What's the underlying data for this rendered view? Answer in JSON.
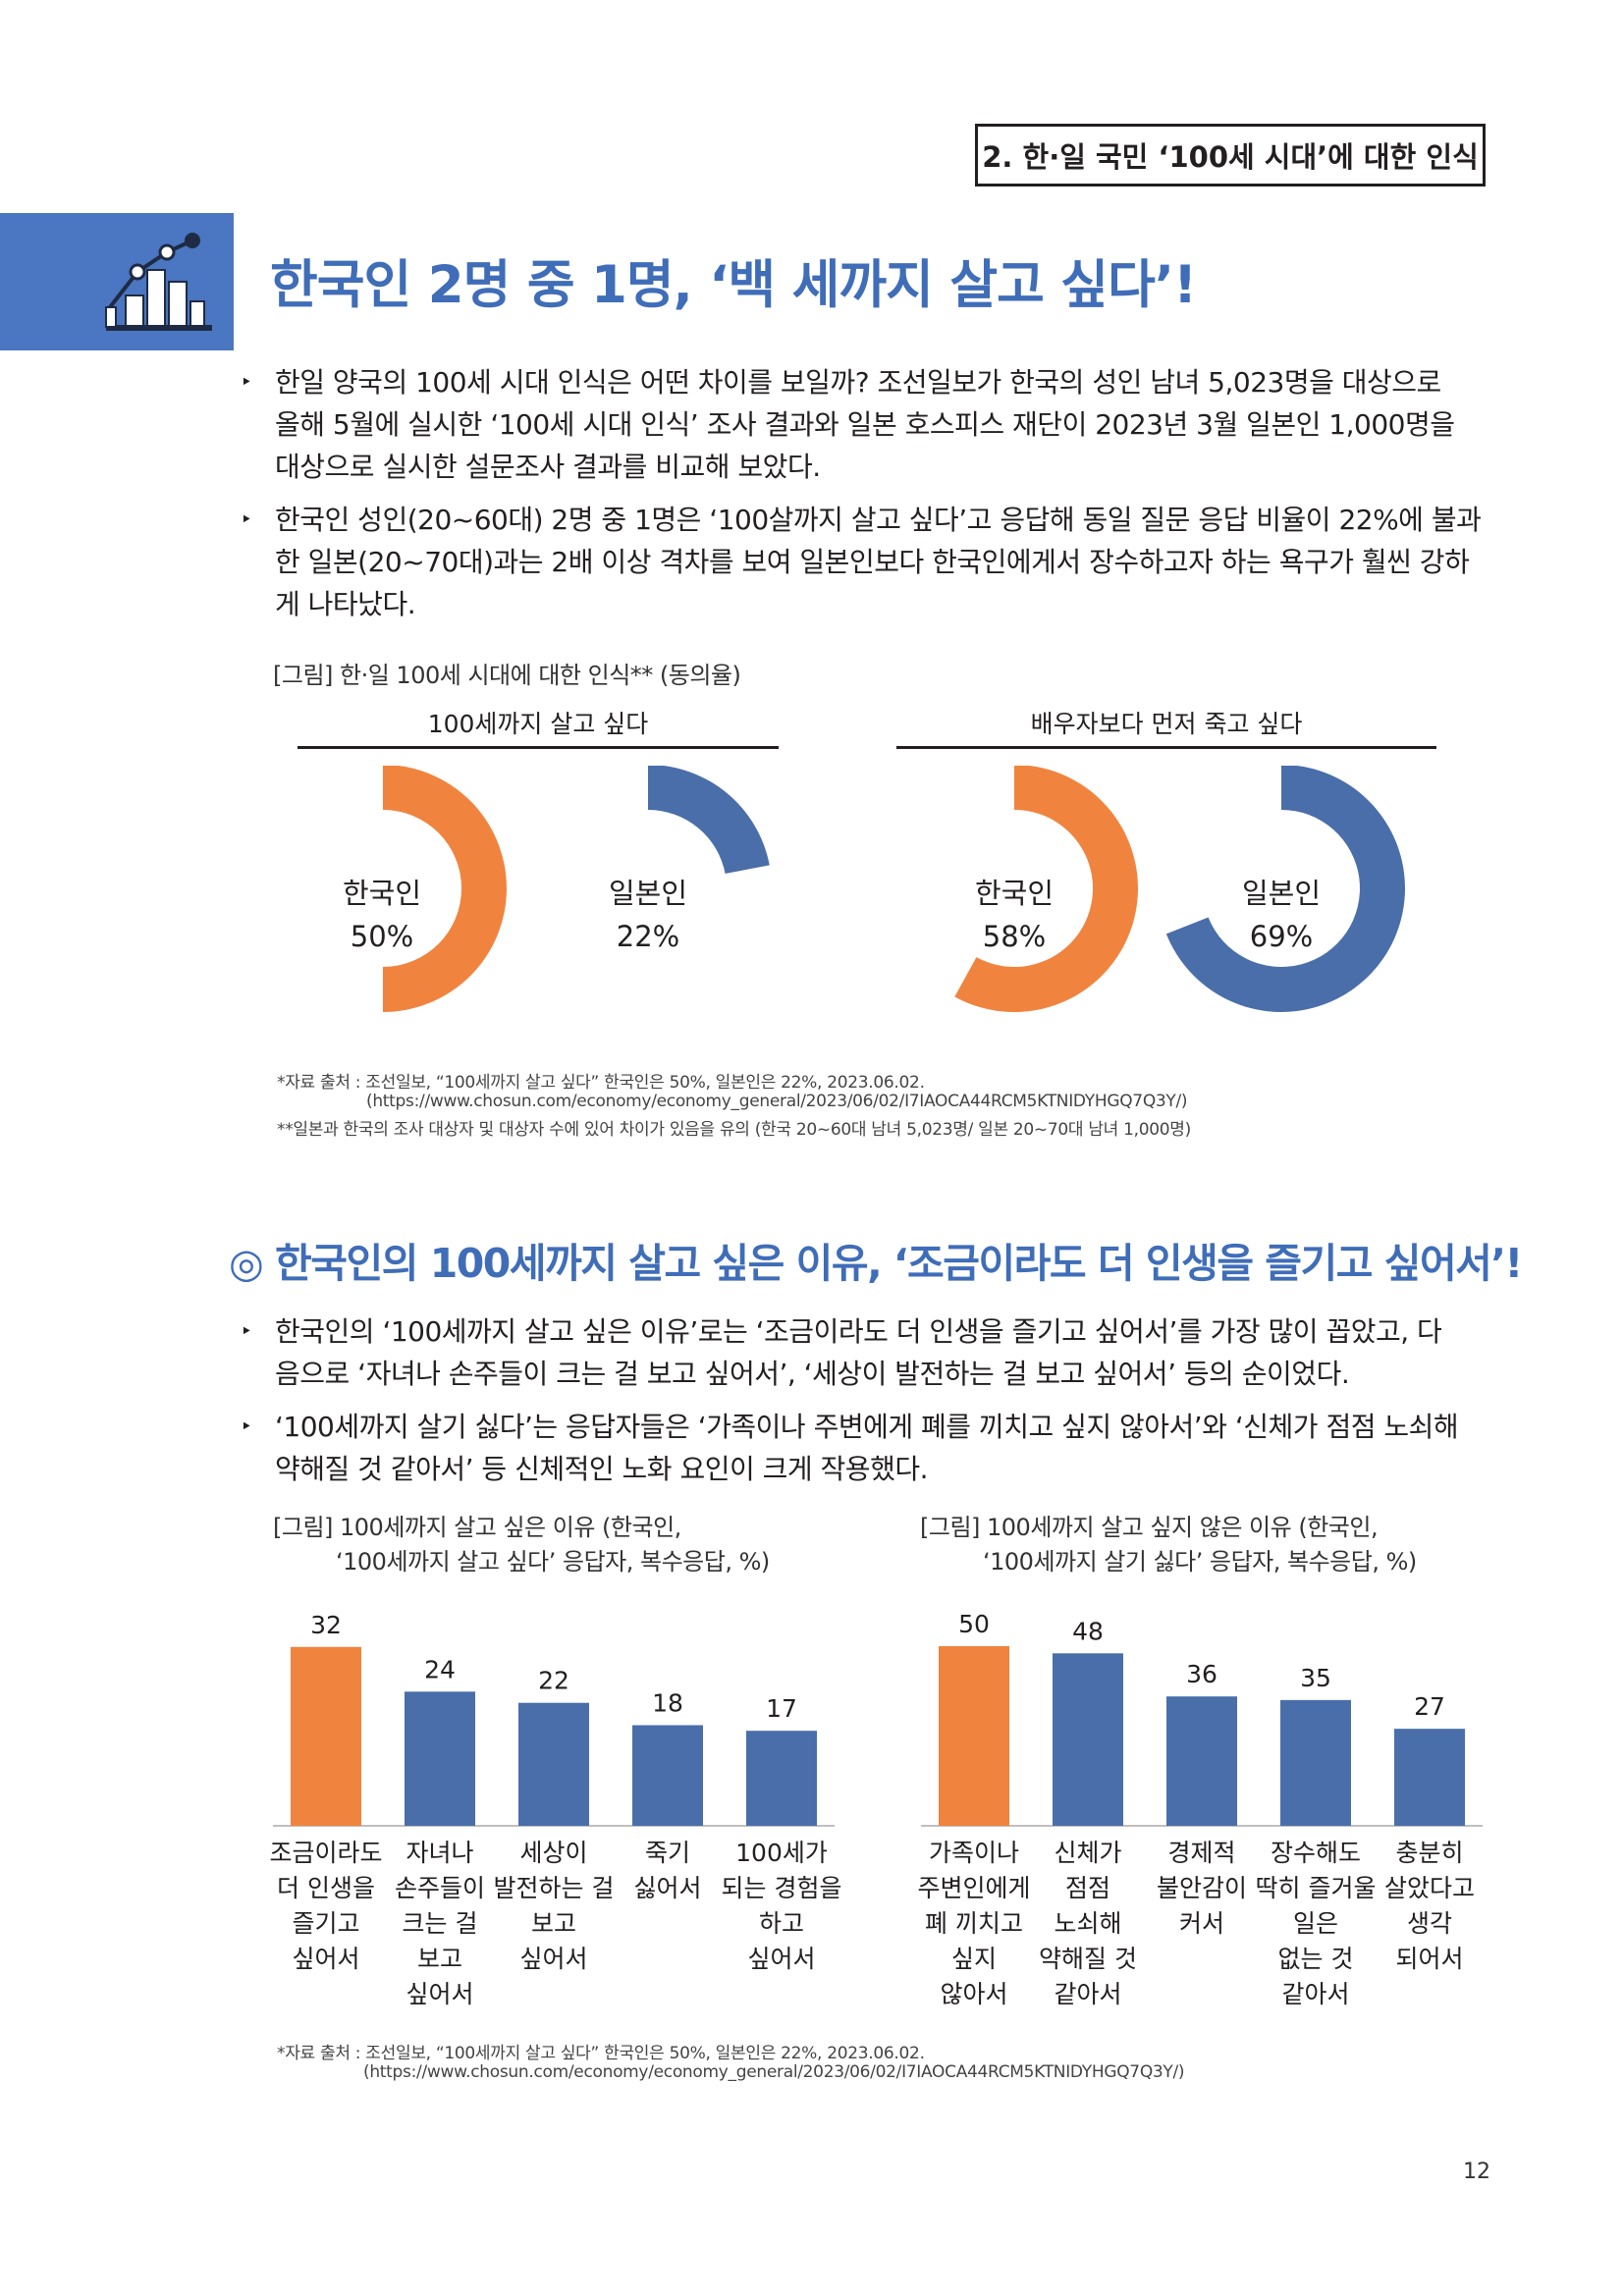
{
  "header": {
    "section_tag": "2. 한·일 국민 ‘100세 시대’에 대한 인식"
  },
  "title": "한국인 2명 중 1명, ‘백 세까지 살고 싶다’!",
  "icon": "chart-icon",
  "colors": {
    "accent_orange": "#f0843f",
    "accent_blue": "#4a6ea9",
    "title_blue": "#3f6db8"
  },
  "bullets_1": [
    {
      "lines": [
        "한일 양국의 100세 시대 인식은 어떤 차이를 보일까? 조선일보가 한국의 성인 남녀 5,023명을 대상으로",
        "올해 5월에 실시한 ‘100세 시대 인식’ 조사 결과와 일본 호스피스 재단이 2023년 3월 일본인 1,000명을",
        "대상으로 실시한 설문조사 결과를 비교해 보았다."
      ]
    },
    {
      "lines": [
        "한국인 성인(20~60대) 2명 중 1명은 ‘100살까지 살고 싶다’고 응답해 동일 질문 응답 비율이 22%에 불과",
        "한 일본(20~70대)과는 2배 이상 격차를 보여 일본인보다 한국인에게서 장수하고자 하는 욕구가 훨씬 강하",
        "게 나타났다."
      ]
    }
  ],
  "figure1": {
    "caption": "[그림] 한·일 100세 시대에 대한 인식** (동의율)",
    "group_left": "100세까지 살고 싶다",
    "group_right": "배우자보다 먼저 죽고 싶다",
    "notes": [
      "*자료 출처 : 조선일보, “100세까지 살고 싶다” 한국인은 50%, 일본인은 22%, 2023.06.02.",
      "(https://www.chosun.com/economy/economy_general/2023/06/02/I7IAOCA44RCM5KTNIDYHGQ7Q3Y/)",
      "**일본과 한국의 조사 대상자 및 대상자 수에 있어 차이가 있음을 유의 (한국 20~60대 남녀 5,023명/ 일본 20~70대 남녀 1,000명)"
    ],
    "donuts": [
      {
        "label": "한국인",
        "value_text": "50%",
        "value": 50,
        "color": "#f0843f"
      },
      {
        "label": "일본인",
        "value_text": "22%",
        "value": 22,
        "color": "#4a6ea9"
      },
      {
        "label": "한국인",
        "value_text": "58%",
        "value": 58,
        "color": "#f0843f"
      },
      {
        "label": "일본인",
        "value_text": "69%",
        "value": 69,
        "color": "#4a6ea9"
      }
    ]
  },
  "sub_title": "◎ 한국인의 100세까지 살고 싶은 이유, ‘조금이라도 더 인생을 즐기고 싶어서’!",
  "bullets_2": [
    {
      "lines": [
        "한국인의 ‘100세까지 살고 싶은 이유’로는 ‘조금이라도 더 인생을 즐기고 싶어서’를 가장 많이 꼽았고, 다",
        "음으로 ‘자녀나 손주들이 크는 걸 보고 싶어서’, ‘세상이 발전하는 걸 보고 싶어서’ 등의 순이었다."
      ]
    },
    {
      "lines": [
        "‘100세까지 살기 싫다’는 응답자들은 ‘가족이나 주변에게 폐를 끼치고 싶지 않아서’와 ‘신체가 점점 노쇠해",
        "약해질 것 같아서’ 등 신체적인 노화 요인이 크게 작용했다."
      ]
    }
  ],
  "chart_data": [
    {
      "type": "bar",
      "title": "[그림] 100세까지 살고 싶은 이유 (한국인, ‘100세까지 살고 싶다’ 응답자, 복수응답, %)",
      "title_lines": [
        "[그림] 100세까지 살고 싶은 이유 (한국인,",
        "‘100세까지 살고 싶다’ 응답자, 복수응답, %)"
      ],
      "categories": [
        [
          "조금이라도",
          "더 인생을",
          "즐기고",
          "싶어서"
        ],
        [
          "자녀나",
          "손주들이",
          "크는 걸",
          "보고",
          "싶어서"
        ],
        [
          "세상이",
          "발전하는 걸",
          "보고",
          "싶어서"
        ],
        [
          "죽기",
          "싫어서"
        ],
        [
          "100세가",
          "되는 경험을",
          "하고",
          "싶어서"
        ]
      ],
      "values": [
        32,
        24,
        22,
        18,
        17
      ],
      "colors": [
        "#f0843f",
        "#4a6ea9",
        "#4a6ea9",
        "#4a6ea9",
        "#4a6ea9"
      ],
      "ylim": [
        0,
        36
      ]
    },
    {
      "type": "bar",
      "title": "[그림] 100세까지 살고 싶지 않은 이유 (한국인, ‘100세까지 살기 싫다’ 응답자, 복수응답, %)",
      "title_lines": [
        "[그림] 100세까지 살고 싶지 않은 이유 (한국인,",
        "‘100세까지 살기 싫다’ 응답자, 복수응답, %)"
      ],
      "categories": [
        [
          "가족이나",
          "주변인에게",
          "폐 끼치고",
          "싶지",
          "않아서"
        ],
        [
          "신체가",
          "점점",
          "노쇠해",
          "약해질 것",
          "같아서"
        ],
        [
          "경제적",
          "불안감이",
          "커서"
        ],
        [
          "장수해도",
          "딱히 즐거울",
          "일은",
          "없는 것",
          "같아서"
        ],
        [
          "충분히",
          "살았다고",
          "생각",
          "되어서"
        ]
      ],
      "values": [
        50,
        48,
        36,
        35,
        27
      ],
      "colors": [
        "#f0843f",
        "#4a6ea9",
        "#4a6ea9",
        "#4a6ea9",
        "#4a6ea9"
      ],
      "ylim": [
        0,
        56
      ]
    }
  ],
  "figure2_notes": [
    "*자료 출처 : 조선일보, “100세까지 살고 싶다” 한국인은 50%, 일본인은 22%, 2023.06.02.",
    "(https://www.chosun.com/economy/economy_general/2023/06/02/I7IAOCA44RCM5KTNIDYHGQ7Q3Y/)"
  ],
  "page_number": "12"
}
